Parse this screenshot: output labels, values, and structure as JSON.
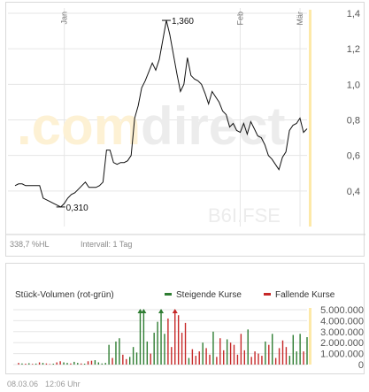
{
  "chart_data": [
    {
      "type": "line",
      "title": "",
      "xlabel": "",
      "ylabel": "",
      "months": [
        "Jan",
        "Feb",
        "Mär"
      ],
      "yticks": [
        "1,4",
        "1,2",
        "1,0",
        "0,8",
        "0,6",
        "0,4"
      ],
      "ytick_values": [
        1.4,
        1.2,
        1.0,
        0.8,
        0.6,
        0.4
      ],
      "ylim": [
        0.2,
        1.4
      ],
      "grid": true,
      "series": [
        {
          "values": [
            0.43,
            0.44,
            0.44,
            0.43,
            0.43,
            0.43,
            0.43,
            0.43,
            0.36,
            0.35,
            0.34,
            0.33,
            0.32,
            0.31,
            0.33,
            0.36,
            0.38,
            0.39,
            0.41,
            0.43,
            0.45,
            0.42,
            0.42,
            0.42,
            0.43,
            0.45,
            0.63,
            0.63,
            0.56,
            0.55,
            0.56,
            0.56,
            0.57,
            0.6,
            0.81,
            0.88,
            0.98,
            1.02,
            1.07,
            1.12,
            1.08,
            1.14,
            1.25,
            1.36,
            1.28,
            1.17,
            1.06,
            0.96,
            1.0,
            1.15,
            1.05,
            1.03,
            1.02,
            1.0,
            0.95,
            0.89,
            0.96,
            0.93,
            0.9,
            0.85,
            0.83,
            0.76,
            0.78,
            0.74,
            0.73,
            0.78,
            0.72,
            0.79,
            0.75,
            0.71,
            0.7,
            0.66,
            0.6,
            0.58,
            0.55,
            0.52,
            0.59,
            0.62,
            0.74,
            0.77,
            0.78,
            0.81,
            0.73,
            0.75
          ]
        }
      ],
      "month_positions": [
        14,
        64,
        81
      ],
      "annotations": {
        "max_label": "1,360",
        "max_index": 43,
        "min_label": "0,310",
        "min_index": 13
      },
      "watermark": {
        "logo_part1": ".com",
        "logo_part2": "direct",
        "symbol": "B6I.FSE",
        "logo_color1": "#fdf1d4",
        "logo_color2": "#ececec"
      },
      "colors": {
        "line": "#111111",
        "highlight_bar": "#fde9a8"
      }
    },
    {
      "type": "bar",
      "title": "Stück-Volumen (rot-grün)",
      "xlabel": "",
      "ylabel": "",
      "yticks": [
        "5.000.000",
        "4.000.000",
        "3.000.000",
        "2.000.000",
        "1.000.000",
        "0"
      ],
      "ytick_values": [
        5000000,
        4000000,
        3000000,
        2000000,
        1000000,
        0
      ],
      "ylim": [
        0,
        5000000
      ],
      "series": [
        {
          "name": "Steigende Kurse",
          "color": "#2e7d32"
        },
        {
          "name": "Fallende Kurse",
          "color": "#c62828"
        }
      ],
      "values": [
        150000,
        100000,
        80000,
        120000,
        60000,
        90000,
        200000,
        150000,
        100000,
        50000,
        80000,
        200000,
        300000,
        200000,
        150000,
        100000,
        250000,
        150000,
        100000,
        80000,
        300000,
        350000,
        400000,
        200000,
        100000,
        150000,
        1800000,
        600000,
        2100000,
        2400000,
        900000,
        500000,
        700000,
        1600000,
        1100000,
        5000000,
        5000000,
        2100000,
        1000000,
        2900000,
        3900000,
        5000000,
        2800000,
        4200000,
        1600000,
        5000000,
        4500000,
        2900000,
        3800000,
        600000,
        1400000,
        800000,
        1200000,
        2000000,
        1500000,
        900000,
        3000000,
        700000,
        2400000,
        1300000,
        2300000,
        2000000,
        1800000,
        900000,
        2800000,
        1300000,
        3200000,
        700000,
        1200000,
        1000000,
        800000,
        2100000,
        1800000,
        2800000,
        600000,
        1500000,
        2200000,
        1600000,
        800000,
        2700000,
        1200000,
        2800000,
        1200000,
        2500000
      ],
      "directions": [
        "r",
        "g",
        "r",
        "g",
        "r",
        "g",
        "r",
        "g",
        "r",
        "r",
        "g",
        "r",
        "r",
        "g",
        "g",
        "r",
        "g",
        "g",
        "r",
        "g",
        "r",
        "r",
        "g",
        "g",
        "g",
        "g",
        "g",
        "r",
        "g",
        "g",
        "r",
        "r",
        "g",
        "g",
        "g",
        "g",
        "g",
        "g",
        "r",
        "g",
        "g",
        "g",
        "g",
        "r",
        "r",
        "r",
        "r",
        "r",
        "r",
        "g",
        "r",
        "r",
        "r",
        "g",
        "r",
        "r",
        "g",
        "r",
        "r",
        "r",
        "g",
        "r",
        "r",
        "r",
        "r",
        "r",
        "g",
        "r",
        "r",
        "r",
        "r",
        "g",
        "r",
        "g",
        "r",
        "r",
        "r",
        "r",
        "g",
        "g",
        "g",
        "g",
        "r",
        "g"
      ],
      "overflow_marker_indices": [
        35,
        36,
        41,
        45
      ],
      "colors": {
        "up": "#2e7d32",
        "down": "#c62828",
        "highlight_bar": "#fde9a8"
      }
    }
  ],
  "info": {
    "performance": "338,7 %HL",
    "interval": "Intervall: 1 Tag"
  },
  "footer": {
    "date": "08.03.06",
    "time": "12:06 Uhr"
  }
}
